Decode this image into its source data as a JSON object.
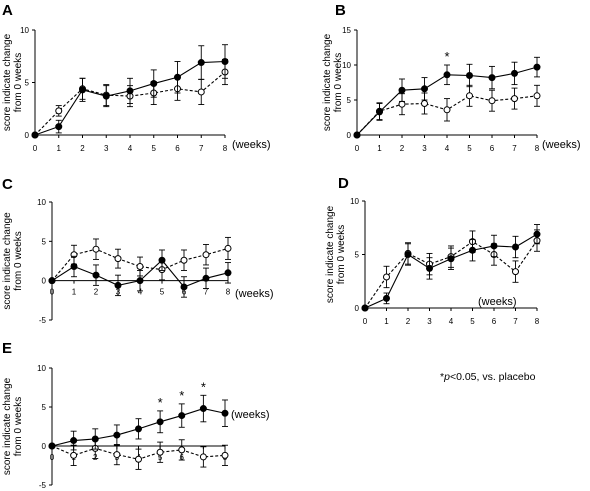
{
  "x_unit_label": "(weeks)",
  "y_label_line1": "score indicate change",
  "y_label_line2": "from 0 weeks",
  "footnote": {
    "prefix": "*",
    "p": "p",
    "rest": "<0.05, vs. placebo"
  },
  "chart_data": [
    {
      "panel": "A",
      "type": "line",
      "x": [
        0,
        1,
        2,
        3,
        4,
        5,
        6,
        7,
        8
      ],
      "xticks": [
        0,
        1,
        2,
        3,
        4,
        5,
        6,
        7,
        8
      ],
      "yticks": [
        0,
        5,
        10
      ],
      "ylim": [
        0,
        10
      ],
      "series": [
        {
          "marker": "filled",
          "line": "solid",
          "values": [
            0,
            0.8,
            4.3,
            3.7,
            4.2,
            4.9,
            5.5,
            6.9,
            7.0
          ],
          "errors": [
            0,
            0.6,
            1.1,
            1.0,
            1.2,
            1.3,
            1.5,
            1.6,
            1.6
          ]
        },
        {
          "marker": "open",
          "line": "dashed",
          "values": [
            0,
            2.3,
            4.4,
            3.8,
            3.7,
            4.0,
            4.4,
            4.1,
            6.0
          ],
          "errors": [
            0,
            0.5,
            1.0,
            1.0,
            1.0,
            1.1,
            1.1,
            1.2,
            1.2
          ]
        }
      ],
      "significant_weeks": []
    },
    {
      "panel": "B",
      "type": "line",
      "x": [
        0,
        1,
        2,
        3,
        4,
        5,
        6,
        7,
        8
      ],
      "xticks": [
        0,
        1,
        2,
        3,
        4,
        5,
        6,
        7,
        8
      ],
      "yticks": [
        0,
        5,
        10,
        15
      ],
      "ylim": [
        0,
        15
      ],
      "series": [
        {
          "marker": "filled",
          "line": "solid",
          "values": [
            0,
            3.3,
            6.4,
            6.6,
            8.6,
            8.5,
            8.2,
            8.8,
            9.7
          ],
          "errors": [
            0,
            1.2,
            1.6,
            1.6,
            1.4,
            1.6,
            1.6,
            1.6,
            1.4
          ]
        },
        {
          "marker": "open",
          "line": "dashed",
          "values": [
            0,
            3.4,
            4.4,
            4.5,
            3.6,
            5.6,
            4.9,
            5.2,
            5.6
          ],
          "errors": [
            0,
            1.2,
            1.5,
            1.5,
            1.6,
            1.5,
            1.5,
            1.5,
            1.5
          ]
        }
      ],
      "significant_weeks": [
        4
      ]
    },
    {
      "panel": "C",
      "type": "line",
      "x": [
        0,
        1,
        2,
        3,
        4,
        5,
        6,
        7,
        8
      ],
      "xticks": [
        0,
        1,
        2,
        3,
        4,
        5,
        6,
        7,
        8
      ],
      "yticks": [
        -5,
        0,
        5,
        10
      ],
      "ylim": [
        -5,
        10
      ],
      "series": [
        {
          "marker": "filled",
          "line": "solid",
          "values": [
            0,
            1.8,
            0.7,
            -0.6,
            0.0,
            2.6,
            -0.8,
            0.3,
            1.0
          ],
          "errors": [
            0,
            1.3,
            1.3,
            1.3,
            1.3,
            1.3,
            1.3,
            1.3,
            1.3
          ]
        },
        {
          "marker": "open",
          "line": "dashed",
          "values": [
            0,
            3.3,
            4.0,
            2.8,
            1.8,
            1.4,
            2.6,
            3.3,
            4.1
          ],
          "errors": [
            0,
            1.2,
            1.3,
            1.2,
            1.2,
            1.3,
            1.3,
            1.3,
            1.4
          ]
        }
      ],
      "significant_weeks": []
    },
    {
      "panel": "D",
      "type": "line",
      "x": [
        0,
        1,
        2,
        3,
        4,
        5,
        6,
        7,
        8
      ],
      "xticks": [
        0,
        1,
        2,
        3,
        4,
        5,
        6,
        7,
        8
      ],
      "yticks": [
        0,
        5,
        10
      ],
      "ylim": [
        0,
        10
      ],
      "series": [
        {
          "marker": "filled",
          "line": "solid",
          "values": [
            0,
            0.9,
            5.0,
            3.7,
            4.6,
            5.4,
            5.8,
            5.7,
            6.9
          ],
          "errors": [
            0,
            0.5,
            1.0,
            1.0,
            1.0,
            1.0,
            1.0,
            1.0,
            0.9
          ]
        },
        {
          "marker": "open",
          "line": "dashed",
          "values": [
            0,
            2.9,
            5.1,
            4.1,
            4.8,
            6.2,
            5.0,
            3.4,
            6.3
          ],
          "errors": [
            0,
            1.0,
            1.0,
            1.0,
            1.0,
            1.0,
            1.0,
            1.0,
            1.0
          ]
        }
      ],
      "significant_weeks": []
    },
    {
      "panel": "E",
      "type": "line",
      "x": [
        0,
        1,
        2,
        3,
        4,
        5,
        6,
        7,
        8
      ],
      "xticks": [
        0,
        1,
        2,
        3,
        4,
        5,
        6,
        7,
        8
      ],
      "yticks": [
        -5,
        0,
        5,
        10
      ],
      "ylim": [
        -5,
        10
      ],
      "series": [
        {
          "marker": "filled",
          "line": "solid",
          "values": [
            0,
            0.7,
            0.9,
            1.4,
            2.2,
            3.1,
            3.9,
            4.8,
            4.2
          ],
          "errors": [
            0,
            1.2,
            1.3,
            1.3,
            1.3,
            1.4,
            1.5,
            1.7,
            1.7
          ]
        },
        {
          "marker": "open",
          "line": "dashed",
          "values": [
            0,
            -1.2,
            -0.3,
            -1.1,
            -1.7,
            -0.8,
            -0.5,
            -1.4,
            -1.2
          ],
          "errors": [
            0,
            1.3,
            1.3,
            1.3,
            1.3,
            1.3,
            1.3,
            1.3,
            1.3
          ]
        }
      ],
      "significant_weeks": [
        5,
        6,
        7
      ]
    }
  ]
}
